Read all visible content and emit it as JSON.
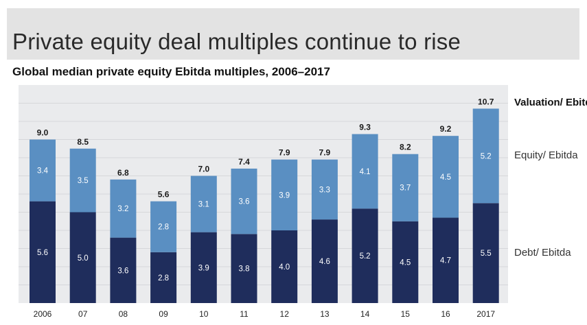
{
  "header": {
    "title": "Private equity deal multiples continue to rise"
  },
  "chart_data": {
    "type": "bar",
    "stacked": true,
    "subtitle": "Global median private equity Ebitda multiples, 2006–2017",
    "categories": [
      "2006",
      "07",
      "08",
      "09",
      "10",
      "11",
      "12",
      "13",
      "14",
      "15",
      "16",
      "2017"
    ],
    "series": [
      {
        "name": "Debt/ Ebitda",
        "color": "#1f2d5c",
        "values": [
          5.6,
          5.0,
          3.6,
          2.8,
          3.9,
          3.8,
          4.0,
          4.6,
          5.2,
          4.5,
          4.7,
          5.5
        ]
      },
      {
        "name": "Equity/ Ebitda",
        "color": "#5a8fc2",
        "values": [
          3.4,
          3.5,
          3.2,
          2.8,
          3.1,
          3.6,
          3.9,
          3.3,
          4.1,
          3.7,
          4.5,
          5.2
        ]
      }
    ],
    "totals": {
      "name": "Valuation/ Ebitda",
      "values": [
        9.0,
        8.5,
        6.8,
        5.6,
        7.0,
        7.4,
        7.9,
        7.9,
        9.3,
        8.2,
        9.2,
        10.7
      ]
    },
    "legend": [
      "Valuation/ Ebitda",
      "Equity/ Ebitda",
      "Debt/ Ebitda"
    ],
    "legend_position": "right",
    "ylim": [
      0,
      11
    ],
    "grid": true,
    "colors": {
      "debt": "#1f2d5c",
      "equity": "#5a8fc2",
      "plot_background": "#eaebed",
      "grid": "#d6d7da"
    }
  }
}
